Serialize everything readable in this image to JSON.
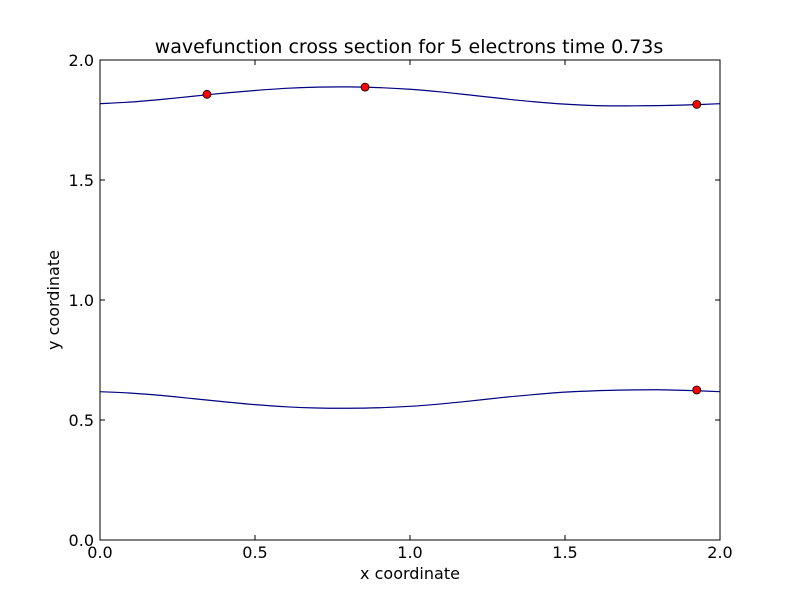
{
  "chart_data": {
    "type": "line",
    "title": "wavefunction cross section for 5 electrons time 0.73s",
    "xlabel": "x coordinate",
    "ylabel": "y coordinate",
    "xlim": [
      0.0,
      2.0
    ],
    "ylim": [
      0.0,
      2.0
    ],
    "xticks": [
      "0.0",
      "0.5",
      "1.0",
      "1.5",
      "2.0"
    ],
    "yticks": [
      "0.0",
      "0.5",
      "1.0",
      "1.5",
      "2.0"
    ],
    "grid": false,
    "series": [
      {
        "color": "#000080",
        "x": [
          0.0,
          0.1,
          0.2,
          0.3,
          0.4,
          0.5,
          0.6,
          0.7,
          0.8,
          0.9,
          1.0,
          1.1,
          1.2,
          1.3,
          1.4,
          1.5,
          1.6,
          1.7,
          1.8,
          1.9,
          2.0
        ],
        "y": [
          1.818,
          1.825,
          1.836,
          1.849,
          1.862,
          1.873,
          1.882,
          1.887,
          1.888,
          1.885,
          1.878,
          1.867,
          1.853,
          1.839,
          1.826,
          1.816,
          1.81,
          1.809,
          1.81,
          1.813,
          1.818
        ]
      },
      {
        "color": "#000080",
        "x": [
          0.0,
          0.1,
          0.2,
          0.3,
          0.4,
          0.5,
          0.6,
          0.7,
          0.8,
          0.9,
          1.0,
          1.1,
          1.2,
          1.3,
          1.4,
          1.5,
          1.6,
          1.7,
          1.8,
          1.9,
          2.0
        ],
        "y": [
          0.618,
          0.612,
          0.602,
          0.589,
          0.576,
          0.564,
          0.555,
          0.55,
          0.549,
          0.551,
          0.557,
          0.567,
          0.58,
          0.594,
          0.606,
          0.616,
          0.622,
          0.625,
          0.626,
          0.623,
          0.618
        ]
      }
    ],
    "markers": {
      "color": "#ff0000",
      "edge_color": "#000000",
      "points": [
        {
          "x": 0.345,
          "y": 1.857
        },
        {
          "x": 0.855,
          "y": 1.887
        },
        {
          "x": 1.925,
          "y": 1.815
        },
        {
          "x": 1.925,
          "y": 0.625
        }
      ]
    }
  }
}
